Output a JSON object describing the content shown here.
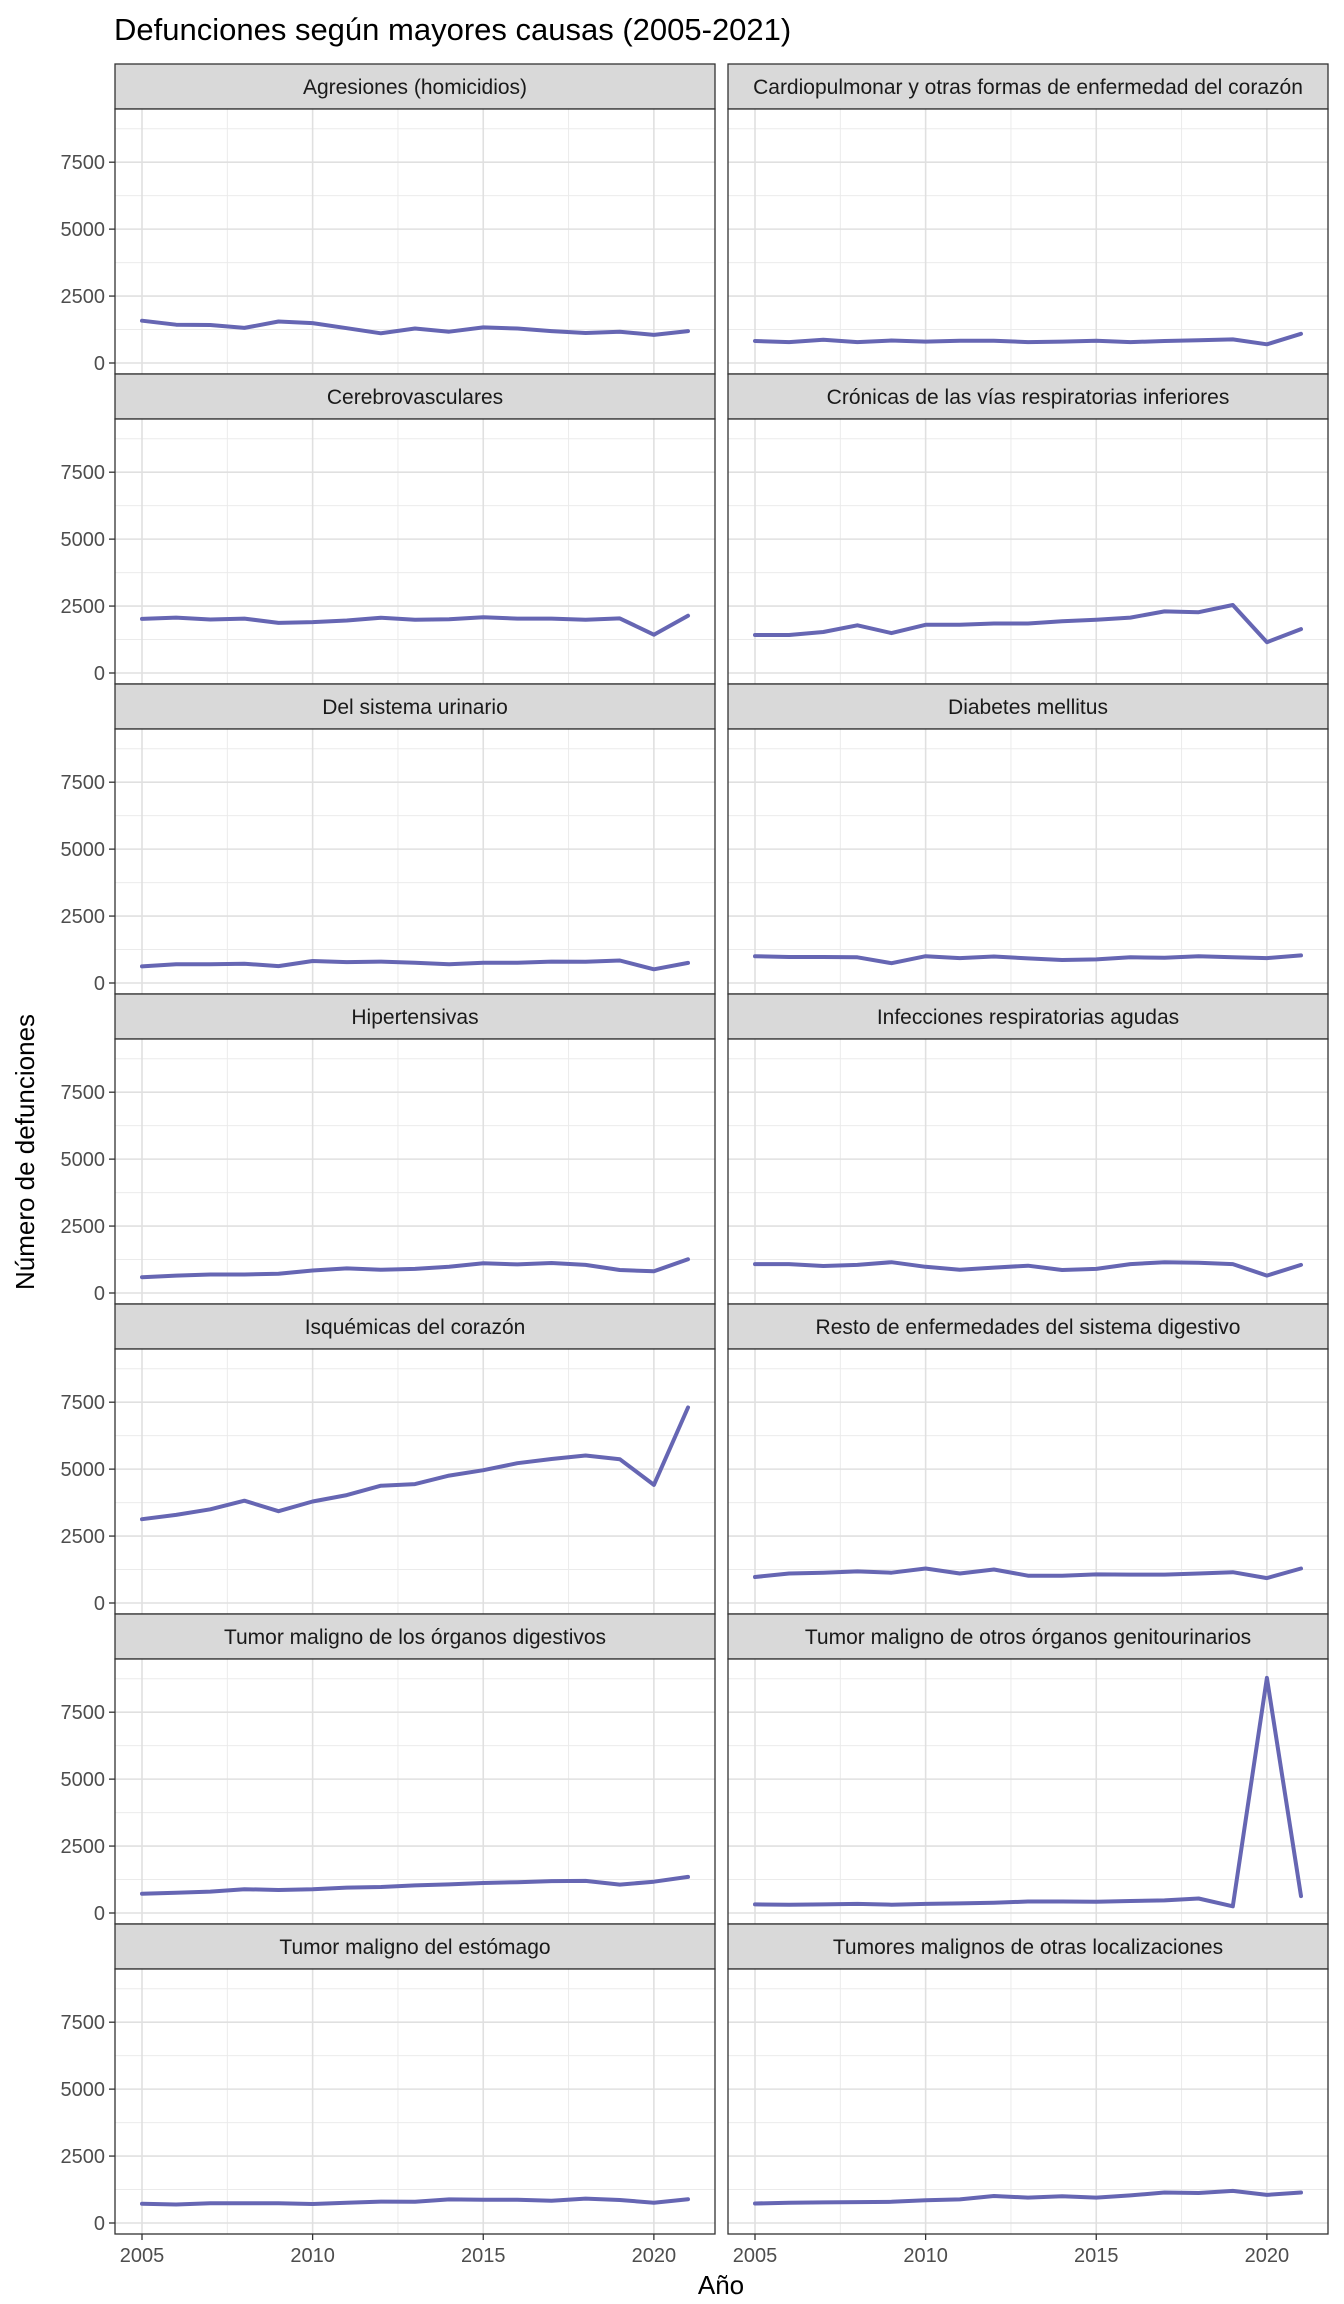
{
  "chart_data": {
    "type": "line",
    "title": "Defunciones según mayores causas (2005-2021)",
    "xlabel": "Año",
    "ylabel": "Número de defunciones",
    "xlim": [
      2005,
      2021
    ],
    "ylim": [
      0,
      9300
    ],
    "x_ticks": [
      2005,
      2010,
      2015,
      2020
    ],
    "y_ticks": [
      0,
      2500,
      5000,
      7500
    ],
    "grid": true,
    "line_color": "#6666b3",
    "x": [
      2005,
      2006,
      2007,
      2008,
      2009,
      2010,
      2011,
      2012,
      2013,
      2014,
      2015,
      2016,
      2017,
      2018,
      2019,
      2020,
      2021
    ],
    "panels": [
      {
        "name": "Agresiones (homicidios)",
        "values": [
          1580,
          1430,
          1420,
          1310,
          1550,
          1490,
          1300,
          1110,
          1290,
          1170,
          1330,
          1290,
          1190,
          1120,
          1170,
          1050,
          1190
        ]
      },
      {
        "name": "Cardiopulmonar y otras formas de enfermedad del corazón",
        "values": [
          820,
          780,
          870,
          780,
          840,
          800,
          830,
          830,
          780,
          800,
          830,
          780,
          820,
          850,
          880,
          700,
          1090
        ]
      },
      {
        "name": "Cerebrovasculares",
        "values": [
          2020,
          2070,
          2000,
          2030,
          1870,
          1900,
          1960,
          2060,
          1990,
          2010,
          2080,
          2030,
          2030,
          1990,
          2040,
          1430,
          2140
        ]
      },
      {
        "name": "Crónicas de las vías respiratorias inferiores",
        "values": [
          1420,
          1420,
          1530,
          1780,
          1490,
          1800,
          1800,
          1850,
          1850,
          1930,
          1990,
          2070,
          2300,
          2270,
          2540,
          1150,
          1640
        ]
      },
      {
        "name": "Del sistema urinario",
        "values": [
          620,
          700,
          700,
          720,
          630,
          820,
          780,
          800,
          760,
          700,
          760,
          760,
          800,
          790,
          840,
          510,
          750
        ]
      },
      {
        "name": "Diabetes mellitus",
        "values": [
          1000,
          970,
          970,
          960,
          740,
          1000,
          930,
          990,
          920,
          860,
          880,
          960,
          940,
          1000,
          960,
          930,
          1030
        ]
      },
      {
        "name": "Hipertensivas",
        "values": [
          590,
          650,
          690,
          690,
          720,
          840,
          920,
          870,
          900,
          980,
          1110,
          1070,
          1120,
          1050,
          860,
          810,
          1260
        ]
      },
      {
        "name": "Infecciones respiratorias agudas",
        "values": [
          1080,
          1080,
          1010,
          1050,
          1150,
          980,
          870,
          950,
          1020,
          860,
          900,
          1080,
          1150,
          1130,
          1080,
          650,
          1050
        ]
      },
      {
        "name": "Isquémicas del corazón",
        "values": [
          3130,
          3290,
          3500,
          3820,
          3430,
          3790,
          4030,
          4380,
          4440,
          4760,
          4960,
          5220,
          5380,
          5510,
          5370,
          4410,
          7300
        ]
      },
      {
        "name": "Resto de enfermedades del sistema digestivo",
        "values": [
          970,
          1100,
          1130,
          1180,
          1130,
          1290,
          1100,
          1250,
          1020,
          1020,
          1070,
          1060,
          1060,
          1100,
          1150,
          930,
          1290
        ]
      },
      {
        "name": "Tumor maligno de los órganos digestivos",
        "values": [
          720,
          760,
          800,
          890,
          860,
          890,
          950,
          970,
          1030,
          1070,
          1120,
          1150,
          1190,
          1200,
          1060,
          1170,
          1350
        ]
      },
      {
        "name": "Tumor maligno de otros órganos genitourinarios",
        "values": [
          320,
          310,
          320,
          340,
          310,
          340,
          360,
          380,
          430,
          430,
          420,
          450,
          470,
          540,
          250,
          8780,
          630
        ]
      },
      {
        "name": "Tumor maligno del estómago",
        "values": [
          720,
          690,
          740,
          740,
          740,
          710,
          760,
          800,
          790,
          880,
          870,
          870,
          830,
          910,
          860,
          760,
          890
        ]
      },
      {
        "name": "Tumores malignos de otras localizaciones",
        "values": [
          730,
          760,
          770,
          780,
          790,
          850,
          880,
          1010,
          950,
          1000,
          950,
          1030,
          1140,
          1120,
          1200,
          1050,
          1140
        ]
      }
    ]
  }
}
